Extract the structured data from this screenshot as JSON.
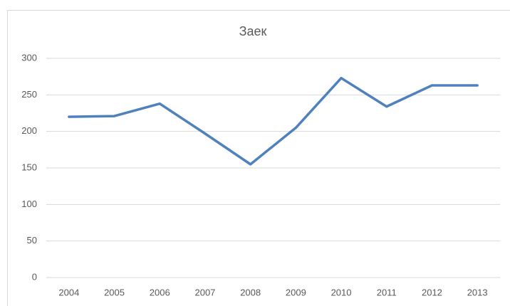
{
  "chart_data": {
    "type": "line",
    "title": "Заек",
    "categories": [
      "2004",
      "2005",
      "2006",
      "2007",
      "2008",
      "2009",
      "2010",
      "2011",
      "2012",
      "2013"
    ],
    "series": [
      {
        "name": "Заек",
        "color": "#4f81bd",
        "values": [
          220,
          221,
          238,
          197,
          155,
          205,
          273,
          234,
          263,
          263
        ]
      }
    ],
    "ylim": [
      0,
      300
    ],
    "yticks": [
      0,
      50,
      100,
      150,
      200,
      250,
      300
    ],
    "grid": true
  }
}
